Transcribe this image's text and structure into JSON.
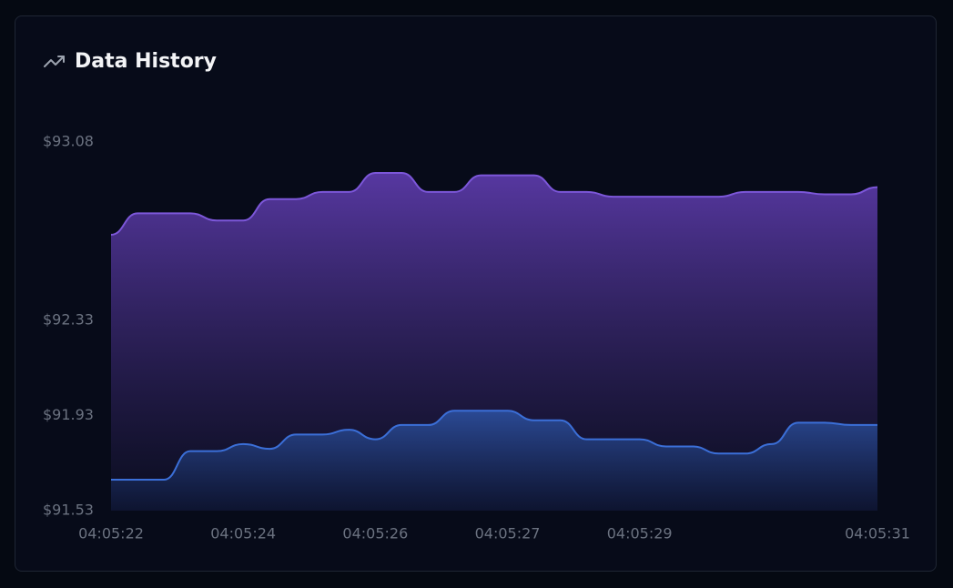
{
  "chart_data": {
    "type": "area",
    "title": "Data History",
    "categories": [
      "04:05:22",
      null,
      null,
      null,
      null,
      "04:05:24",
      null,
      null,
      null,
      null,
      "04:05:26",
      null,
      null,
      null,
      null,
      "04:05:27",
      null,
      null,
      null,
      null,
      "04:05:29",
      null,
      null,
      null,
      null,
      null,
      null,
      null,
      null,
      "04:05:31"
    ],
    "series": [
      {
        "color": "#7c57d9",
        "values": [
          92.69,
          92.78,
          92.78,
          92.78,
          92.75,
          92.75,
          92.84,
          92.84,
          92.87,
          92.87,
          92.95,
          92.95,
          92.87,
          92.87,
          92.94,
          92.94,
          92.94,
          92.87,
          92.87,
          92.85,
          92.85,
          92.85,
          92.85,
          92.85,
          92.87,
          92.87,
          92.87,
          92.86,
          92.86,
          92.89
        ]
      },
      {
        "color": "#3b6fd8",
        "values": [
          91.66,
          91.66,
          91.66,
          91.78,
          91.78,
          91.81,
          91.79,
          91.85,
          91.85,
          91.87,
          91.83,
          91.89,
          91.89,
          91.95,
          91.95,
          91.95,
          91.91,
          91.91,
          91.83,
          91.83,
          91.83,
          91.8,
          91.8,
          91.77,
          91.77,
          91.81,
          91.9,
          91.9,
          91.89,
          91.89
        ]
      }
    ],
    "ylim": [
      91.53,
      93.08
    ],
    "yticks": [
      {
        "value": 93.08,
        "label": "$93.08"
      },
      {
        "value": 92.33,
        "label": "$92.33"
      },
      {
        "value": 91.93,
        "label": "$91.93"
      },
      {
        "value": 91.53,
        "label": "$91.53"
      }
    ],
    "grid": false
  }
}
